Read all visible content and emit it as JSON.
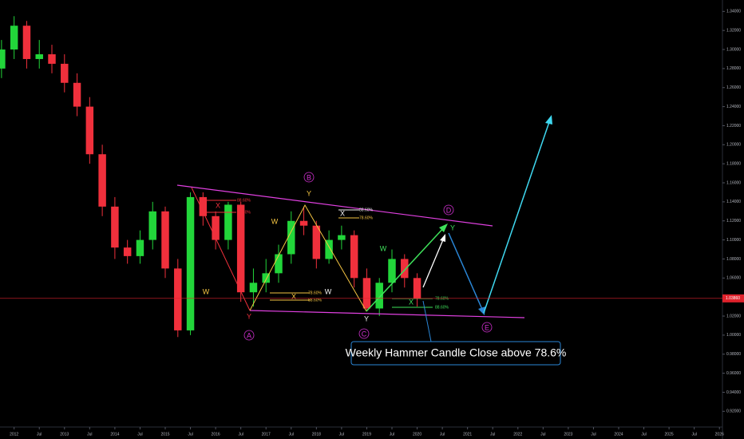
{
  "chart_data": {
    "type": "candlestick",
    "x": [
      2011.75,
      2012.0,
      2012.25,
      2012.5,
      2012.75,
      2013.0,
      2013.25,
      2013.5,
      2013.75,
      2014.0,
      2014.25,
      2014.5,
      2014.75,
      2015.0,
      2015.25,
      2015.5,
      2015.75,
      2016.0,
      2016.25,
      2016.5,
      2016.75,
      2017.0,
      2017.25,
      2017.5,
      2017.75,
      2018.0,
      2018.25,
      2018.5,
      2018.75,
      2019.0,
      2019.25,
      2019.5,
      2019.75,
      2020.0
    ],
    "open": [
      1.28,
      1.3,
      1.325,
      1.29,
      1.295,
      1.285,
      1.265,
      1.24,
      1.19,
      1.135,
      1.092,
      1.083,
      1.1,
      1.13,
      1.07,
      1.005,
      1.145,
      1.125,
      1.1,
      1.137,
      1.045,
      1.055,
      1.065,
      1.085,
      1.12,
      1.115,
      1.08,
      1.1,
      1.105,
      1.06,
      1.028,
      1.055,
      1.08,
      1.06
    ],
    "high": [
      1.31,
      1.335,
      1.33,
      1.31,
      1.305,
      1.295,
      1.275,
      1.25,
      1.2,
      1.145,
      1.1,
      1.11,
      1.14,
      1.135,
      1.08,
      1.15,
      1.15,
      1.13,
      1.14,
      1.14,
      1.07,
      1.08,
      1.095,
      1.13,
      1.135,
      1.12,
      1.11,
      1.115,
      1.11,
      1.07,
      1.06,
      1.09,
      1.085,
      1.065
    ],
    "low": [
      1.27,
      1.29,
      1.28,
      1.28,
      1.275,
      1.255,
      1.23,
      1.18,
      1.125,
      1.08,
      1.075,
      1.075,
      1.09,
      1.06,
      0.998,
      1.0,
      1.115,
      1.09,
      1.09,
      1.035,
      1.03,
      1.045,
      1.055,
      1.075,
      1.105,
      1.07,
      1.075,
      1.09,
      1.05,
      1.025,
      1.02,
      1.045,
      1.05,
      1.03
    ],
    "close": [
      1.3,
      1.325,
      1.29,
      1.295,
      1.285,
      1.265,
      1.24,
      1.19,
      1.135,
      1.092,
      1.083,
      1.1,
      1.13,
      1.07,
      1.005,
      1.145,
      1.125,
      1.1,
      1.137,
      1.045,
      1.055,
      1.065,
      1.085,
      1.12,
      1.115,
      1.08,
      1.1,
      1.105,
      1.06,
      1.028,
      1.055,
      1.08,
      1.06,
      1.0386
    ],
    "up_color": "#22d63a",
    "down_color": "#f0303c",
    "last_price": {
      "value": 1.0386,
      "label": "1.03860"
    },
    "last_price_color": "#e0222c",
    "xlim": [
      2011.72,
      2026.06
    ],
    "ylim": [
      0.906,
      1.352
    ],
    "yticks": [
      {
        "value": 1.34,
        "label": "1.34000"
      },
      {
        "value": 1.32,
        "label": "1.32000"
      },
      {
        "value": 1.3,
        "label": "1.30000"
      },
      {
        "value": 1.28,
        "label": "1.28000"
      },
      {
        "value": 1.26,
        "label": "1.26000"
      },
      {
        "value": 1.24,
        "label": "1.24000"
      },
      {
        "value": 1.22,
        "label": "1.22000"
      },
      {
        "value": 1.2,
        "label": "1.20000"
      },
      {
        "value": 1.18,
        "label": "1.18000"
      },
      {
        "value": 1.16,
        "label": "1.16000"
      },
      {
        "value": 1.14,
        "label": "1.14000"
      },
      {
        "value": 1.12,
        "label": "1.12000"
      },
      {
        "value": 1.1,
        "label": "1.10000"
      },
      {
        "value": 1.08,
        "label": "1.08000"
      },
      {
        "value": 1.06,
        "label": "1.06000"
      },
      {
        "value": 1.04,
        "label": "1.04000"
      },
      {
        "value": 1.02,
        "label": "1.02000"
      },
      {
        "value": 1.0,
        "label": "1.00000"
      },
      {
        "value": 0.98,
        "label": "0.98000"
      },
      {
        "value": 0.96,
        "label": "0.96000"
      },
      {
        "value": 0.94,
        "label": "0.94000"
      },
      {
        "value": 0.92,
        "label": "0.92000"
      }
    ],
    "xticks": [
      2012,
      {
        "value": 2012.5,
        "label": "Jul"
      },
      2013,
      {
        "value": 2013.5,
        "label": "Jul"
      },
      2014,
      {
        "value": 2014.5,
        "label": "Jul"
      },
      2015,
      {
        "value": 2015.5,
        "label": "Jul"
      },
      2016,
      {
        "value": 2016.5,
        "label": "Jul"
      },
      2017,
      {
        "value": 2017.5,
        "label": "Jul"
      },
      2018,
      {
        "value": 2018.5,
        "label": "Jul"
      },
      2019,
      {
        "value": 2019.5,
        "label": "Jul"
      },
      2020,
      {
        "value": 2020.5,
        "label": "Jul"
      },
      2021,
      {
        "value": 2021.5,
        "label": "Jul"
      },
      2022,
      {
        "value": 2022.5,
        "label": "Jul"
      },
      2023,
      {
        "value": 2023.5,
        "label": "Jul"
      },
      2024,
      {
        "value": 2024.5,
        "label": "Jul"
      },
      2025,
      {
        "value": 2025.5,
        "label": "Jul"
      },
      2026
    ],
    "annotations": [
      "A",
      "B",
      "C",
      "D",
      "E",
      "Y",
      "Y",
      "Y",
      "Y",
      "W",
      "W",
      "W",
      "W",
      "X",
      "X",
      "X",
      "X",
      "88.60%",
      "78.60%",
      "78.60%",
      "88.60%",
      "88.60%",
      "78.60%",
      "78.60%",
      "88.60%",
      "Weekly Hammer Candle Close above 78.6%"
    ]
  }
}
